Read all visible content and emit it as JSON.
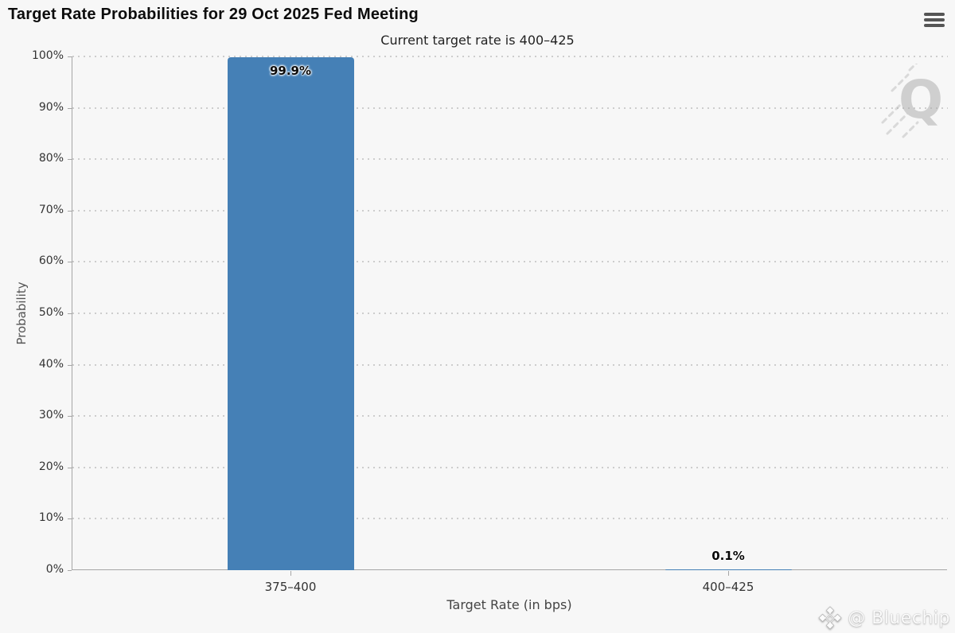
{
  "header": {
    "title": "Target Rate Probabilities for 29 Oct 2025 Fed Meeting"
  },
  "chart_data": {
    "type": "bar",
    "title": "Target Rate Probabilities for 29 Oct 2025 Fed Meeting",
    "subtitle": "Current target rate is 400–425",
    "categories": [
      "375–400",
      "400–425"
    ],
    "values": [
      99.9,
      0.1
    ],
    "data_labels": [
      "99.9%",
      "0.1%"
    ],
    "xlabel": "Target Rate (in bps)",
    "ylabel": "Probability",
    "ylim": [
      0,
      100
    ],
    "ytick_step": 10,
    "yticks": [
      "0%",
      "10%",
      "20%",
      "30%",
      "40%",
      "50%",
      "60%",
      "70%",
      "80%",
      "90%",
      "100%"
    ],
    "grid": "dotted-horizontal",
    "legend": "none",
    "bar_color": "#4580b6"
  },
  "watermarks": {
    "logo_letter": "Q",
    "credit": "@ Bluechip"
  },
  "colors": {
    "background": "#f7f7f7",
    "bar": "#4580b6",
    "axis": "#a6a6a6",
    "grid": "#d4d4d4",
    "tick_text": "#333333",
    "menu_icon": "#555555",
    "q_watermark": "#c9c9c9"
  }
}
